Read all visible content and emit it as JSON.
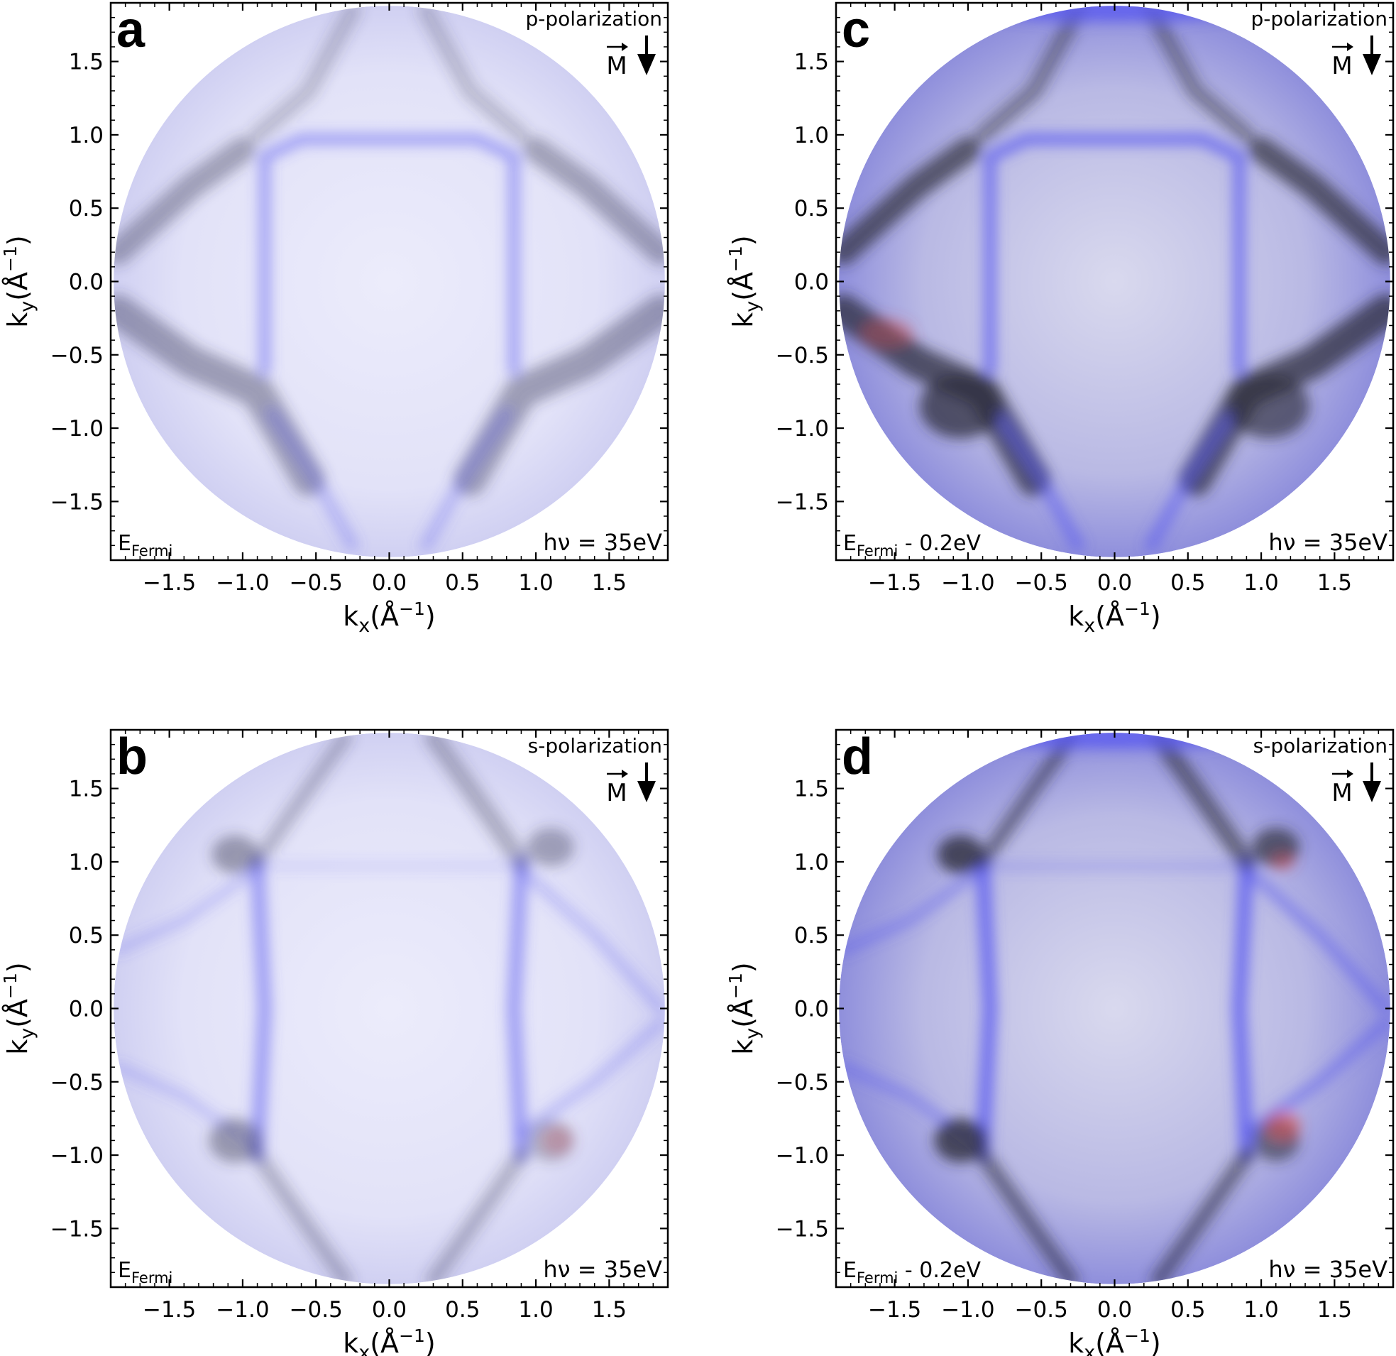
{
  "chart_data": [
    {
      "type": "heatmap",
      "panel_label": "a",
      "polarization_label": "p-polarization",
      "magnetization_label": "M",
      "magnetization_direction": "down",
      "energy_label": {
        "main": "E",
        "sub": "Fermi",
        "suffix": ""
      },
      "photon_label": "hν = 35eV",
      "xlabel": {
        "main": "k",
        "sub": "x",
        "rest": "(Å",
        "sup": "−1",
        "close": ")"
      },
      "ylabel": {
        "main": "k",
        "sub": "y",
        "rest": "(Å",
        "sup": "−1",
        "close": ")"
      },
      "xlim": [
        -1.9,
        1.9
      ],
      "ylim": [
        -1.9,
        1.9
      ],
      "xticks": [
        -1.5,
        -1.0,
        -0.5,
        0.0,
        0.5,
        1.0,
        1.5
      ],
      "yticks": [
        -1.5,
        -1.0,
        -0.5,
        0.0,
        0.5,
        1.0,
        1.5
      ],
      "xtick_labels": [
        "−1.5",
        "−1.0",
        "−0.5",
        "0.0",
        "0.5",
        "1.0",
        "1.5"
      ],
      "ytick_labels": [
        "−1.5",
        "−1.0",
        "−0.5",
        "0.0",
        "0.5",
        "1.0",
        "1.5"
      ],
      "detector_radius": 1.88,
      "colormap": [
        "#ffffff",
        "#5a5af0",
        "#2c2c3c",
        "#e05050"
      ],
      "features": "square pocket edges at |kx|≈0.85, ky≈0.95; strong arcs around (±1.5, −0.5) and (±1.5, 0.4)",
      "intensity": "faint"
    },
    {
      "type": "heatmap",
      "panel_label": "b",
      "polarization_label": "s-polarization",
      "magnetization_label": "M",
      "magnetization_direction": "down",
      "energy_label": {
        "main": "E",
        "sub": "Fermi",
        "suffix": ""
      },
      "photon_label": "hν = 35eV",
      "xlabel": {
        "main": "k",
        "sub": "x",
        "rest": "(Å",
        "sup": "−1",
        "close": ")"
      },
      "ylabel": {
        "main": "k",
        "sub": "y",
        "rest": "(Å",
        "sup": "−1",
        "close": ")"
      },
      "xlim": [
        -1.9,
        1.9
      ],
      "ylim": [
        -1.9,
        1.9
      ],
      "xticks": [
        -1.5,
        -1.0,
        -0.5,
        0.0,
        0.5,
        1.0,
        1.5
      ],
      "yticks": [
        -1.5,
        -1.0,
        -0.5,
        0.0,
        0.5,
        1.0,
        1.5
      ],
      "xtick_labels": [
        "−1.5",
        "−1.0",
        "−0.5",
        "0.0",
        "0.5",
        "1.0",
        "1.5"
      ],
      "ytick_labels": [
        "−1.5",
        "−1.0",
        "−0.5",
        "0.0",
        "0.5",
        "1.0",
        "1.5"
      ],
      "detector_radius": 1.88,
      "colormap": [
        "#ffffff",
        "#5a5af0",
        "#2c2c3c",
        "#e05050"
      ],
      "features": "hot spots near (±1.0, ±1.0); vertical bands at kx≈±0.85; diagonal arcs",
      "intensity": "faint"
    },
    {
      "type": "heatmap",
      "panel_label": "c",
      "polarization_label": "p-polarization",
      "magnetization_label": "M",
      "magnetization_direction": "down",
      "energy_label": {
        "main": "E",
        "sub": "Fermi",
        "suffix": " - 0.2eV"
      },
      "photon_label": "hν = 35eV",
      "xlabel": {
        "main": "k",
        "sub": "x",
        "rest": "(Å",
        "sup": "−1",
        "close": ")"
      },
      "ylabel": {
        "main": "k",
        "sub": "y",
        "rest": "(Å",
        "sup": "−1",
        "close": ")"
      },
      "xlim": [
        -1.9,
        1.9
      ],
      "ylim": [
        -1.9,
        1.9
      ],
      "xticks": [
        -1.5,
        -1.0,
        -0.5,
        0.0,
        0.5,
        1.0,
        1.5
      ],
      "yticks": [
        -1.5,
        -1.0,
        -0.5,
        0.0,
        0.5,
        1.0,
        1.5
      ],
      "xtick_labels": [
        "−1.5",
        "−1.0",
        "−0.5",
        "0.0",
        "0.5",
        "1.0",
        "1.5"
      ],
      "ytick_labels": [
        "−1.5",
        "−1.0",
        "−0.5",
        "0.0",
        "0.5",
        "1.0",
        "1.5"
      ],
      "detector_radius": 1.88,
      "colormap": [
        "#ffffff",
        "#5a5af0",
        "#2c2c3c",
        "#e05050"
      ],
      "features": "square pocket top edge at ky≈0.95; diamond arcs; dark spots near (±1.0, −0.85)",
      "intensity": "strong"
    },
    {
      "type": "heatmap",
      "panel_label": "d",
      "polarization_label": "s-polarization",
      "magnetization_label": "M",
      "magnetization_direction": "down",
      "energy_label": {
        "main": "E",
        "sub": "Fermi",
        "suffix": " - 0.2eV"
      },
      "photon_label": "hν = 35eV",
      "xlabel": {
        "main": "k",
        "sub": "x",
        "rest": "(Å",
        "sup": "−1",
        "close": ")"
      },
      "ylabel": {
        "main": "k",
        "sub": "y",
        "rest": "(Å",
        "sup": "−1",
        "close": ")"
      },
      "xlim": [
        -1.9,
        1.9
      ],
      "ylim": [
        -1.9,
        1.9
      ],
      "xticks": [
        -1.5,
        -1.0,
        -0.5,
        0.0,
        0.5,
        1.0,
        1.5
      ],
      "yticks": [
        -1.5,
        -1.0,
        -0.5,
        0.0,
        0.5,
        1.0,
        1.5
      ],
      "xtick_labels": [
        "−1.5",
        "−1.0",
        "−0.5",
        "0.0",
        "0.5",
        "1.0",
        "1.5"
      ],
      "ytick_labels": [
        "−1.5",
        "−1.0",
        "−0.5",
        "0.0",
        "0.5",
        "1.0",
        "1.5"
      ],
      "detector_radius": 1.88,
      "colormap": [
        "#ffffff",
        "#5a5af0",
        "#2c2c3c",
        "#e05050"
      ],
      "features": "dark spots near (±1.0, ±1.0); strong vertical bands at kx≈±0.85; red hot spot near (1.1, −0.85)",
      "intensity": "strong"
    }
  ]
}
